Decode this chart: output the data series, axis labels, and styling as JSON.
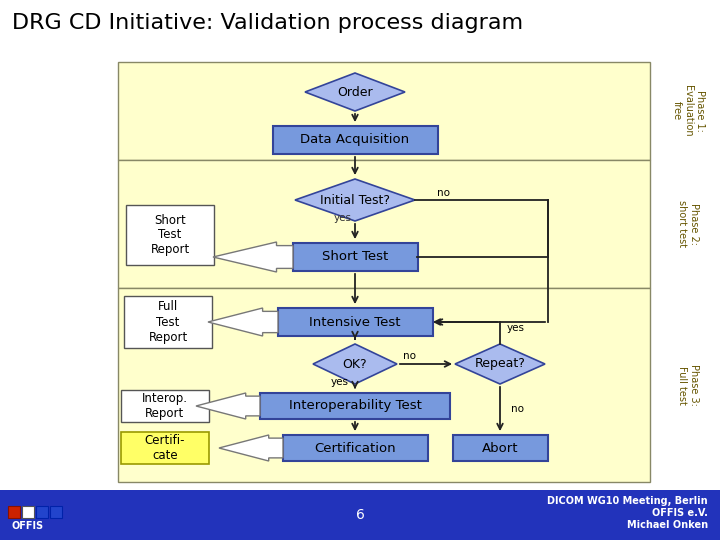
{
  "title": "DRG CD Initiative: Validation process diagram",
  "title_fontsize": 16,
  "title_color": "#000000",
  "bg_color": "#ffffff",
  "phase_bg": "#ffffcc",
  "box_blue_fill": "#7799dd",
  "box_blue_edge": "#334499",
  "box_white_fill": "#ffffff",
  "box_white_edge": "#555555",
  "box_yellow_fill": "#ffff66",
  "box_yellow_edge": "#999900",
  "diamond_fill": "#aabbee",
  "diamond_edge": "#334499",
  "line_color": "#222222",
  "phase_label_color": "#665500",
  "footer_bg": "#2233bb",
  "footer_text": "#ffffff",
  "phase1_label": "Phase 1:\nEvaluation\nfree",
  "phase2_label": "Phase 2:\nshort test",
  "phase3_label": "Phase 3:\nFull test",
  "footer_center": "6",
  "footer_right": "DICOM WG10 Meeting, Berlin\nOFFIS e.V.\nMichael Onken"
}
